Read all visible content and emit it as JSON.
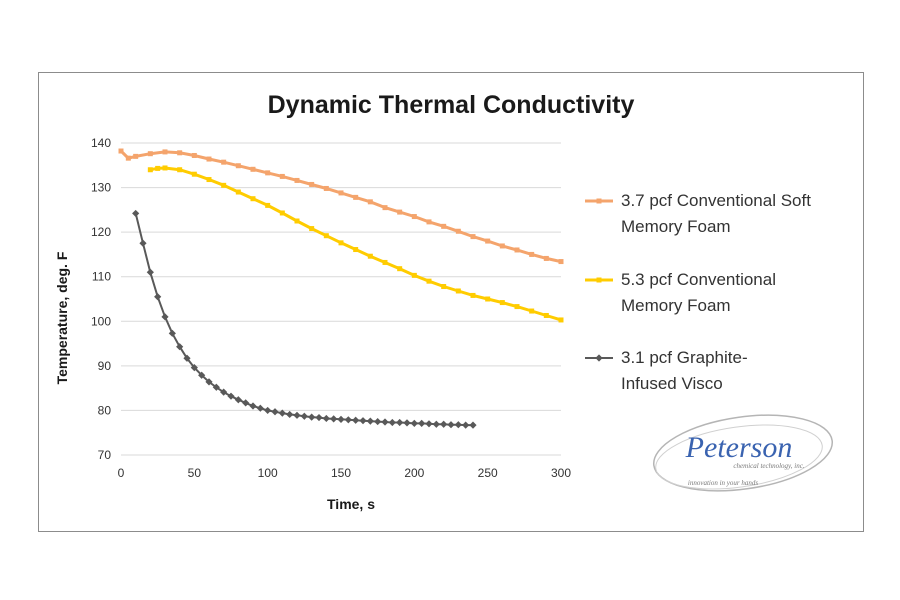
{
  "chart_data": {
    "type": "line",
    "title": "Dynamic Thermal Conductivity",
    "xlabel": "Time, s",
    "ylabel": "Temperature, deg. F",
    "xlim": [
      0,
      300
    ],
    "ylim": [
      70,
      140
    ],
    "xticks": [
      "0",
      "50",
      "100",
      "150",
      "200",
      "250",
      "300"
    ],
    "yticks": [
      "70",
      "80",
      "90",
      "100",
      "110",
      "120",
      "130",
      "140"
    ],
    "grid": "horizontal",
    "legend_position": "right",
    "series": [
      {
        "name": "3.7 pcf Conventional Soft Memory Foam",
        "legend_lines": [
          "3.7 pcf Conventional Soft",
          "Memory Foam"
        ],
        "color": "#f4a46c",
        "marker": "square",
        "x": [
          0,
          5,
          10,
          20,
          30,
          40,
          50,
          60,
          70,
          80,
          90,
          100,
          110,
          120,
          130,
          140,
          150,
          160,
          170,
          180,
          190,
          200,
          210,
          220,
          230,
          240,
          250,
          260,
          270,
          280,
          290,
          300
        ],
        "y": [
          138.2,
          136.6,
          137.0,
          137.6,
          138.0,
          137.8,
          137.2,
          136.4,
          135.7,
          134.9,
          134.1,
          133.3,
          132.5,
          131.6,
          130.7,
          129.8,
          128.8,
          127.8,
          126.8,
          125.5,
          124.5,
          123.5,
          122.3,
          121.3,
          120.2,
          119.0,
          118.0,
          116.9,
          116.0,
          115.0,
          114.1,
          113.4
        ]
      },
      {
        "name": "5.3 pcf Conventional Memory Foam",
        "legend_lines": [
          "5.3 pcf Conventional",
          "Memory Foam"
        ],
        "color": "#ffcc00",
        "marker": "square",
        "x": [
          20,
          25,
          30,
          40,
          50,
          60,
          70,
          80,
          90,
          100,
          110,
          120,
          130,
          140,
          150,
          160,
          170,
          180,
          190,
          200,
          210,
          220,
          230,
          240,
          250,
          260,
          270,
          280,
          290,
          300
        ],
        "y": [
          134.0,
          134.3,
          134.4,
          134.0,
          133.0,
          131.8,
          130.5,
          129.0,
          127.5,
          126.0,
          124.3,
          122.5,
          120.8,
          119.2,
          117.6,
          116.1,
          114.6,
          113.2,
          111.8,
          110.3,
          109.0,
          107.8,
          106.8,
          105.8,
          105.0,
          104.2,
          103.3,
          102.3,
          101.3,
          100.3
        ]
      },
      {
        "name": "3.1 pcf Graphite-Infused Visco",
        "legend_lines": [
          "3.1 pcf Graphite-",
          "Infused Visco"
        ],
        "color": "#595959",
        "marker": "diamond",
        "x": [
          10,
          15,
          20,
          25,
          30,
          35,
          40,
          45,
          50,
          55,
          60,
          65,
          70,
          75,
          80,
          85,
          90,
          95,
          100,
          105,
          110,
          115,
          120,
          125,
          130,
          135,
          140,
          145,
          150,
          155,
          160,
          165,
          170,
          175,
          180,
          185,
          190,
          195,
          200,
          205,
          210,
          215,
          220,
          225,
          230,
          235,
          240
        ],
        "y": [
          124.2,
          117.5,
          111.0,
          105.5,
          101.0,
          97.3,
          94.3,
          91.7,
          89.6,
          87.9,
          86.4,
          85.2,
          84.1,
          83.2,
          82.4,
          81.7,
          81.0,
          80.5,
          80.0,
          79.7,
          79.4,
          79.1,
          78.9,
          78.7,
          78.5,
          78.4,
          78.2,
          78.1,
          78.0,
          77.9,
          77.8,
          77.7,
          77.6,
          77.5,
          77.4,
          77.3,
          77.3,
          77.2,
          77.1,
          77.1,
          77.0,
          76.9,
          76.9,
          76.8,
          76.8,
          76.7,
          76.7
        ]
      }
    ]
  },
  "logo": {
    "name": "Peterson",
    "subtitle": "chemical technology, inc.",
    "tagline": "innovation in your hands"
  }
}
